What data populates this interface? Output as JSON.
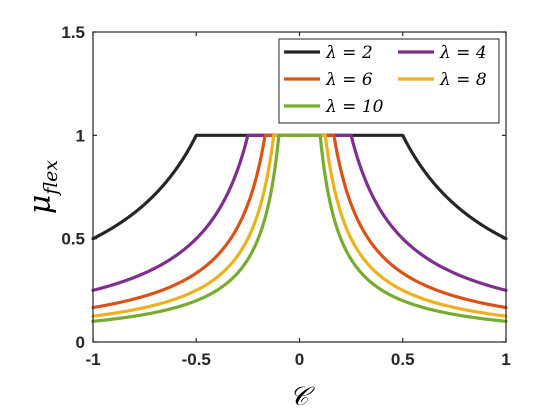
{
  "chart_data": {
    "type": "line",
    "xlabel": "𝒞",
    "ylabel_main": "μ",
    "ylabel_sub": "flex",
    "xlim": [
      -1,
      1
    ],
    "ylim": [
      0,
      1.5
    ],
    "xticks": [
      -1,
      -0.5,
      0,
      0.5,
      1
    ],
    "xtick_labels": [
      "-1",
      "-0.5",
      "0",
      "0.5",
      "1"
    ],
    "yticks": [
      0,
      0.5,
      1,
      1.5
    ],
    "ytick_labels": [
      "0",
      "0.5",
      "1",
      "1.5"
    ],
    "grid": false,
    "legend_placement": "top-right",
    "series": [
      {
        "name": "λ = 2",
        "lambda": 2,
        "color": "#262626"
      },
      {
        "name": "λ = 4",
        "lambda": 4,
        "color": "#7e2f8e"
      },
      {
        "name": "λ = 6",
        "lambda": 6,
        "color": "#d95319"
      },
      {
        "name": "λ = 8",
        "lambda": 8,
        "color": "#edb120"
      },
      {
        "name": "λ = 10",
        "lambda": 10,
        "color": "#77ac30"
      }
    ]
  }
}
